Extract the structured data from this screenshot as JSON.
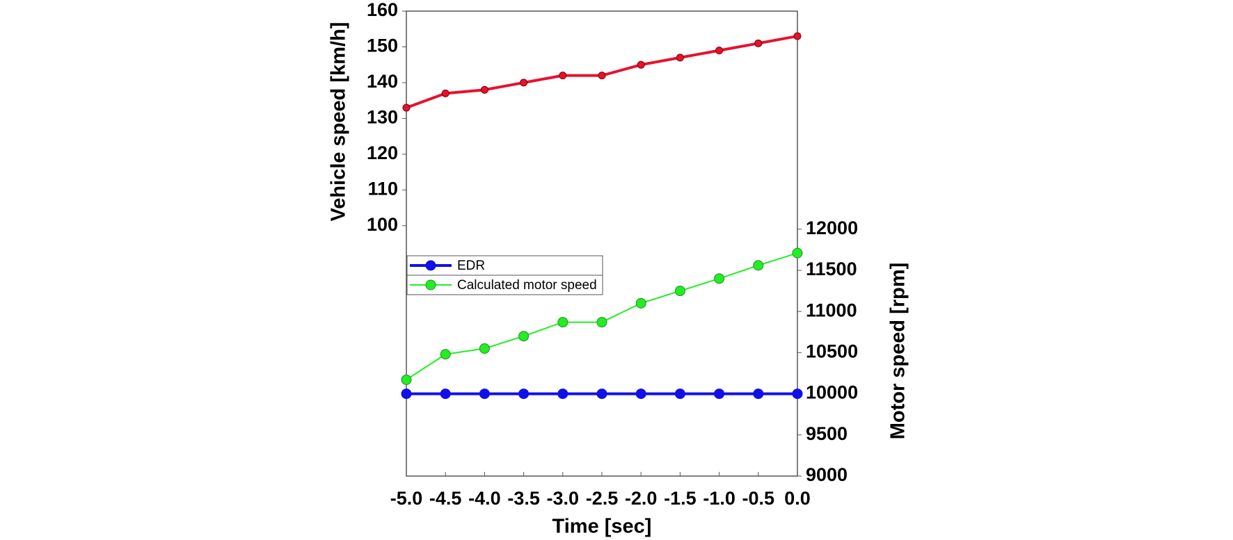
{
  "chart_data": {
    "type": "line",
    "x_label": "Time [sec]",
    "y_label": "Vehicle speed [km/h]",
    "y2_label": "Motor speed [rpm]",
    "x": [
      -5.0,
      -4.5,
      -4.0,
      -3.5,
      -3.0,
      -2.5,
      -2.0,
      -1.5,
      -1.0,
      -0.5,
      0.0
    ],
    "xlim": [
      -5.0,
      0.0
    ],
    "xticks": [
      {
        "value": -5.0,
        "label": "-5.0"
      },
      {
        "value": -4.5,
        "label": "-4.5"
      },
      {
        "value": -4.0,
        "label": "-4.0"
      },
      {
        "value": -3.5,
        "label": "-3.5"
      },
      {
        "value": -3.0,
        "label": "-3.0"
      },
      {
        "value": -2.5,
        "label": "-2.5"
      },
      {
        "value": -2.0,
        "label": "-2.0"
      },
      {
        "value": -1.5,
        "label": "-1.5"
      },
      {
        "value": -1.0,
        "label": "-1.0"
      },
      {
        "value": -0.5,
        "label": "-0.5"
      },
      {
        "value": 0.0,
        "label": "0.0"
      }
    ],
    "ylim": [
      30,
      160
    ],
    "yticks": [
      100,
      110,
      120,
      130,
      140,
      150,
      160
    ],
    "y2lim": [
      9000,
      14650
    ],
    "y2ticks": [
      9000,
      9500,
      10000,
      10500,
      11000,
      11500,
      12000
    ],
    "series": [
      {
        "color": "#e8112d",
        "axis": "y",
        "values": [
          133,
          137,
          138,
          140,
          142,
          142,
          145,
          147,
          149,
          151,
          153
        ]
      },
      {
        "name": "EDR",
        "color": "#1010e8",
        "axis": "y2",
        "values": [
          10000,
          10000,
          10000,
          10000,
          10000,
          10000,
          10000,
          10000,
          10000,
          10000,
          10000
        ]
      },
      {
        "name": "Calculated motor speed",
        "color": "#22ee22",
        "axis": "y2",
        "values": [
          10170,
          10480,
          10550,
          10700,
          10870,
          10870,
          11100,
          11250,
          11400,
          11560,
          11710
        ]
      }
    ]
  }
}
